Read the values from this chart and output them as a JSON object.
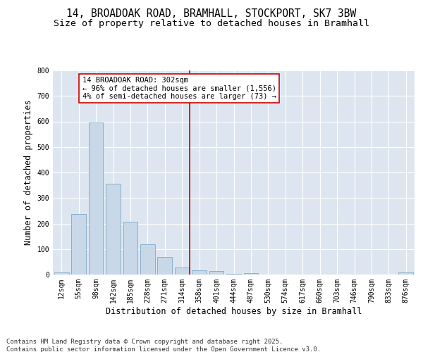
{
  "title_line1": "14, BROADOAK ROAD, BRAMHALL, STOCKPORT, SK7 3BW",
  "title_line2": "Size of property relative to detached houses in Bramhall",
  "xlabel": "Distribution of detached houses by size in Bramhall",
  "ylabel": "Number of detached properties",
  "categories": [
    "12sqm",
    "55sqm",
    "98sqm",
    "142sqm",
    "185sqm",
    "228sqm",
    "271sqm",
    "314sqm",
    "358sqm",
    "401sqm",
    "444sqm",
    "487sqm",
    "530sqm",
    "574sqm",
    "617sqm",
    "660sqm",
    "703sqm",
    "746sqm",
    "790sqm",
    "833sqm",
    "876sqm"
  ],
  "values": [
    8,
    238,
    597,
    355,
    207,
    118,
    70,
    28,
    17,
    13,
    4,
    6,
    0,
    0,
    0,
    0,
    0,
    0,
    0,
    0,
    8
  ],
  "bar_color": "#c8d8e8",
  "bar_edge_color": "#6a9cc0",
  "vline_bin": 7,
  "vline_color": "#cc0000",
  "annotation_text": "14 BROADOAK ROAD: 302sqm\n← 96% of detached houses are smaller (1,556)\n4% of semi-detached houses are larger (73) →",
  "annotation_box_color": "#ffffff",
  "annotation_box_edge_color": "#cc0000",
  "ylim": [
    0,
    800
  ],
  "yticks": [
    0,
    100,
    200,
    300,
    400,
    500,
    600,
    700,
    800
  ],
  "background_color": "#dde6f0",
  "grid_color": "#ffffff",
  "footer_line1": "Contains HM Land Registry data © Crown copyright and database right 2025.",
  "footer_line2": "Contains public sector information licensed under the Open Government Licence v3.0.",
  "title_fontsize": 10.5,
  "subtitle_fontsize": 9.5,
  "axis_label_fontsize": 8.5,
  "tick_fontsize": 7,
  "annotation_fontsize": 7.5,
  "footer_fontsize": 6.5
}
